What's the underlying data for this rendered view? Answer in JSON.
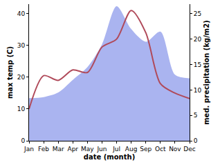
{
  "chart_data": {
    "type": "line",
    "xlabel": "date (month)",
    "ylabel": "max temp (C)",
    "y2label": "med. precipitation (kg/m2)",
    "categories": [
      "Jan",
      "Feb",
      "Mar",
      "Apr",
      "May",
      "Jun",
      "Jul",
      "Aug",
      "Sep",
      "Oct",
      "Nov",
      "Dec"
    ],
    "series": [
      {
        "name": "med. precipitation",
        "type": "area",
        "axis": "y2",
        "color": "#aab4f0",
        "values": [
          8.4,
          8.6,
          9.5,
          12,
          14.5,
          19,
          26.5,
          22,
          19.5,
          21.5,
          13,
          12.3
        ]
      },
      {
        "name": "max temp",
        "type": "line",
        "color": "#b04a5a",
        "values": [
          10,
          20.5,
          19,
          22.3,
          21.5,
          29.5,
          32,
          41,
          34,
          18,
          15,
          13.3
        ]
      }
    ],
    "ylim": [
      0,
      43
    ],
    "yticks": [
      0,
      10,
      20,
      30,
      40
    ],
    "y2lim": [
      0,
      26.9
    ],
    "y2ticks": [
      0,
      5,
      10,
      15,
      20,
      25
    ],
    "grid": false
  }
}
